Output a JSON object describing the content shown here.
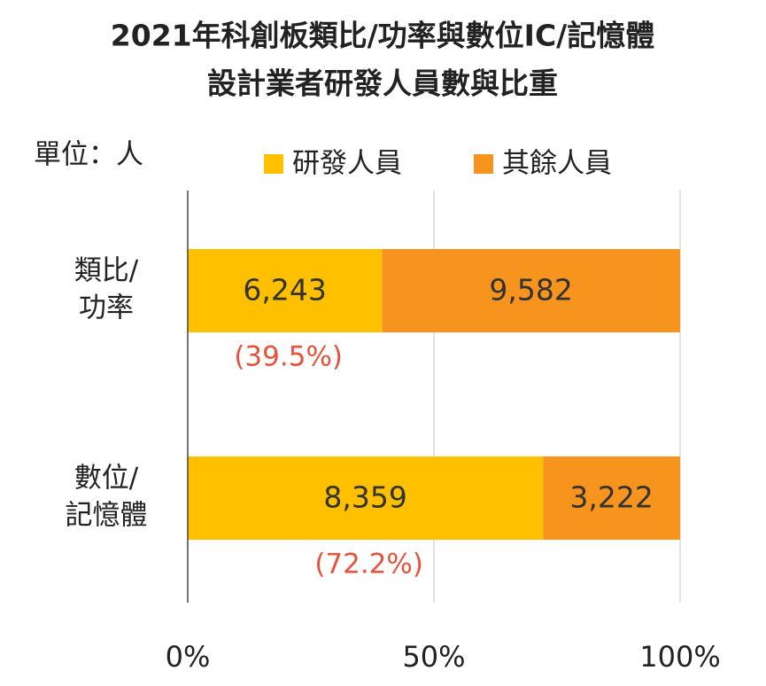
{
  "chart_data": {
    "type": "bar",
    "orientation": "horizontal",
    "stacked": "percent",
    "title": [
      "2021年科創板類比/功率與數位IC/記憶體",
      "設計業者研發人員數與比重"
    ],
    "unit_label": "單位：人",
    "categories": [
      [
        "類比/",
        "功率"
      ],
      [
        "數位/",
        "記憶體"
      ]
    ],
    "series": [
      {
        "name": "研發人員",
        "color": "#ffc000",
        "values": [
          6243,
          8359
        ],
        "value_labels": [
          "6,243",
          "8,359"
        ]
      },
      {
        "name": "其餘人員",
        "color": "#f7941d",
        "values": [
          9582,
          3222
        ],
        "value_labels": [
          "9,582",
          "3,222"
        ]
      }
    ],
    "shares": [
      39.5,
      72.2
    ],
    "share_labels": [
      "(39.5%)",
      "(72.2%)"
    ],
    "xlim": [
      0,
      100
    ],
    "xticks": [
      {
        "value": 0,
        "label": "0%"
      },
      {
        "value": 50,
        "label": "50%"
      },
      {
        "value": 100,
        "label": "100%"
      }
    ],
    "grid": true,
    "legend": "top"
  }
}
